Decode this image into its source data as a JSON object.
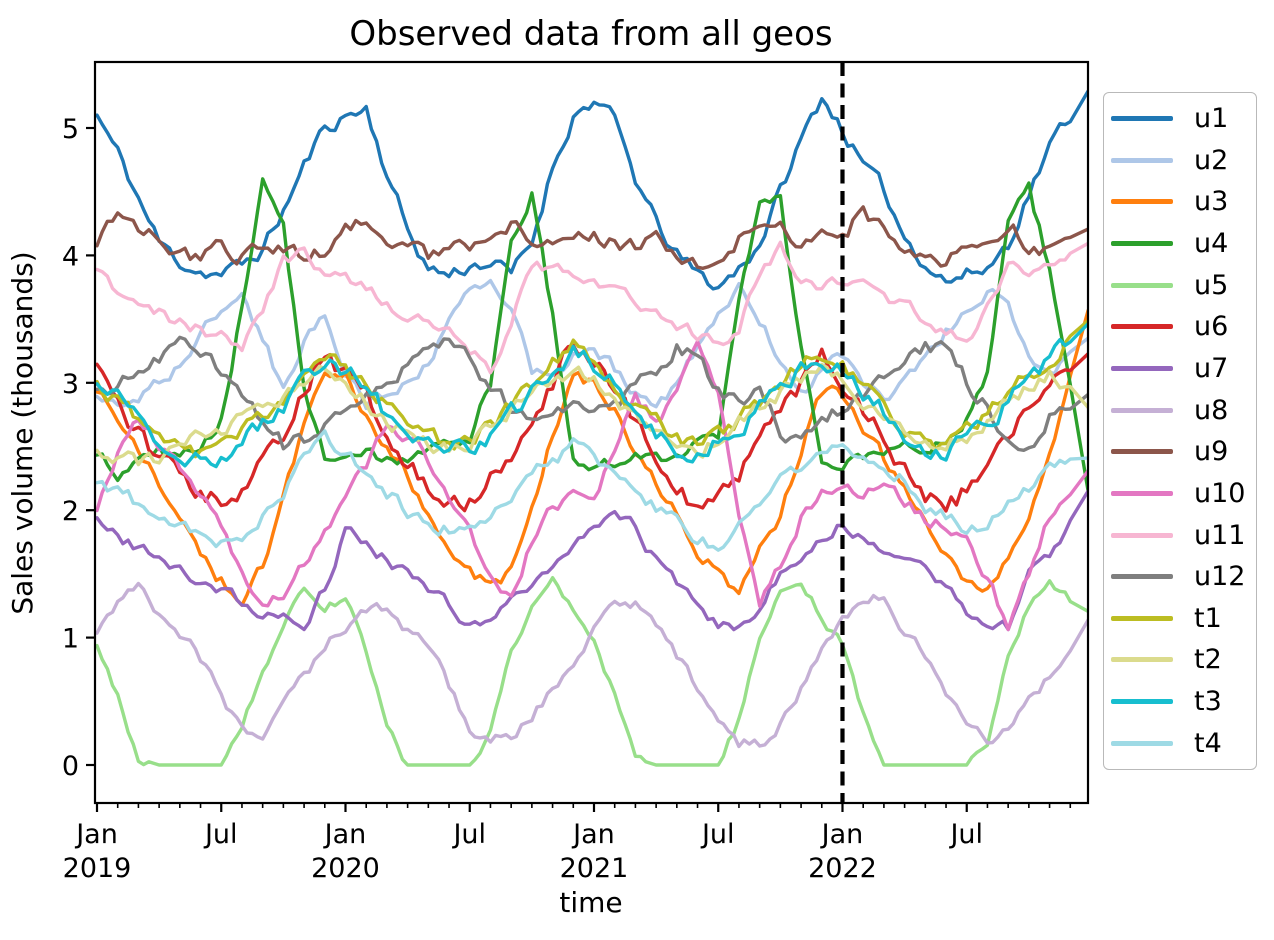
{
  "figure": {
    "title": "Observed data from all geos",
    "xlabel": "time",
    "ylabel": "Sales volume (thousands)"
  },
  "legend": {
    "position": "outside-right",
    "entries": [
      {
        "id": "u1",
        "label": "u1",
        "color": "#1f77b4"
      },
      {
        "id": "u2",
        "label": "u2",
        "color": "#aec7e8"
      },
      {
        "id": "u3",
        "label": "u3",
        "color": "#ff7f0e"
      },
      {
        "id": "u4",
        "label": "u4",
        "color": "#2ca02c"
      },
      {
        "id": "u5",
        "label": "u5",
        "color": "#98df8a"
      },
      {
        "id": "u6",
        "label": "u6",
        "color": "#d62728"
      },
      {
        "id": "u7",
        "label": "u7",
        "color": "#9467bd"
      },
      {
        "id": "u8",
        "label": "u8",
        "color": "#c5b0d5"
      },
      {
        "id": "u9",
        "label": "u9",
        "color": "#8c564b"
      },
      {
        "id": "u10",
        "label": "u10",
        "color": "#e377c2"
      },
      {
        "id": "u11",
        "label": "u11",
        "color": "#f7b6d2"
      },
      {
        "id": "u12",
        "label": "u12",
        "color": "#7f7f7f"
      },
      {
        "id": "t1",
        "label": "t1",
        "color": "#bcbd22"
      },
      {
        "id": "t2",
        "label": "t2",
        "color": "#dbdb8d"
      },
      {
        "id": "t3",
        "label": "t3",
        "color": "#17becf"
      },
      {
        "id": "t4",
        "label": "t4",
        "color": "#9edae5"
      }
    ]
  },
  "chart_data": {
    "type": "line",
    "title": "Observed data from all geos",
    "xlabel": "time",
    "ylabel": "Sales volume (thousands)",
    "x_unit": "months since Jan 2019",
    "x_range_months": 48,
    "xlim": [
      0,
      47.86
    ],
    "ylim": [
      -0.3,
      5.52
    ],
    "grid": false,
    "legend_position": "outside-right",
    "xticks": [
      {
        "month": 0,
        "label": "Jan",
        "year": "2019"
      },
      {
        "month": 6,
        "label": "Jul"
      },
      {
        "month": 12,
        "label": "Jan",
        "year": "2020"
      },
      {
        "month": 18,
        "label": "Jul"
      },
      {
        "month": 24,
        "label": "Jan",
        "year": "2021"
      },
      {
        "month": 30,
        "label": "Jul"
      },
      {
        "month": 36,
        "label": "Jan",
        "year": "2022"
      },
      {
        "month": 42,
        "label": "Jul"
      }
    ],
    "minor_xticks_every_month": true,
    "yticks": [
      0,
      1,
      2,
      3,
      4,
      5
    ],
    "vline": {
      "month": 36,
      "date": "Jan 2022",
      "color": "#000000",
      "style": "dashed"
    },
    "series": [
      {
        "name": "u1",
        "color": "#1f77b4",
        "jitter": 0.055,
        "values": [
          5.1,
          4.8,
          4.45,
          4.1,
          3.95,
          3.88,
          3.85,
          3.92,
          4.05,
          4.35,
          4.7,
          5.0,
          5.1,
          5.15,
          4.65,
          4.2,
          3.9,
          3.85,
          3.92,
          3.95,
          3.85,
          4.1,
          4.7,
          5.1,
          5.22,
          5.05,
          4.6,
          4.25,
          4.0,
          3.85,
          3.75,
          3.9,
          4.1,
          4.5,
          4.9,
          5.25,
          5.0,
          4.7,
          4.5,
          4.15,
          3.95,
          3.8,
          3.85,
          3.9,
          4.1,
          4.5,
          4.85,
          5.1
        ]
      },
      {
        "name": "u2",
        "color": "#aec7e8",
        "jitter": 0.05,
        "values": [
          2.9,
          2.8,
          2.9,
          3.0,
          3.15,
          3.35,
          3.6,
          3.67,
          3.35,
          2.95,
          3.3,
          3.55,
          3.1,
          2.85,
          2.9,
          3.0,
          3.2,
          3.45,
          3.7,
          3.8,
          3.55,
          3.1,
          3.0,
          3.25,
          3.3,
          3.1,
          2.95,
          2.85,
          3.0,
          3.25,
          3.55,
          3.72,
          3.5,
          3.2,
          2.9,
          3.1,
          3.2,
          3.0,
          2.9,
          3.0,
          3.15,
          3.4,
          3.58,
          3.7,
          3.6,
          3.25,
          3.05,
          3.2
        ]
      },
      {
        "name": "u3",
        "color": "#ff7f0e",
        "jitter": 0.05,
        "values": [
          2.95,
          2.7,
          2.45,
          2.2,
          1.9,
          1.65,
          1.45,
          1.32,
          1.55,
          2.1,
          2.65,
          3.0,
          3.05,
          2.75,
          2.5,
          2.25,
          2.0,
          1.75,
          1.55,
          1.4,
          1.5,
          2.0,
          2.6,
          3.0,
          3.0,
          2.8,
          2.5,
          2.2,
          1.95,
          1.7,
          1.5,
          1.35,
          1.7,
          1.95,
          2.5,
          2.9,
          2.9,
          2.65,
          2.4,
          2.15,
          1.9,
          1.7,
          1.45,
          1.35,
          1.6,
          1.85,
          2.45,
          3.05
        ]
      },
      {
        "name": "u4",
        "color": "#2ca02c",
        "jitter": 0.05,
        "values": [
          2.4,
          2.3,
          2.35,
          2.45,
          2.4,
          2.5,
          2.7,
          3.6,
          4.6,
          4.2,
          2.9,
          2.4,
          2.35,
          2.45,
          2.4,
          2.35,
          2.45,
          2.55,
          2.6,
          3.0,
          4.05,
          4.45,
          3.5,
          2.4,
          2.35,
          2.4,
          2.5,
          2.45,
          2.4,
          2.55,
          2.6,
          3.7,
          4.38,
          4.42,
          3.3,
          2.35,
          2.4,
          2.35,
          2.45,
          2.5,
          2.45,
          2.55,
          2.7,
          3.1,
          4.3,
          4.5,
          3.9,
          2.95
        ]
      },
      {
        "name": "u5",
        "color": "#98df8a",
        "jitter": 0.035,
        "values": [
          0.95,
          0.55,
          0.05,
          0.0,
          0.0,
          0.0,
          0.0,
          0.3,
          0.75,
          1.1,
          1.4,
          1.25,
          1.3,
          0.9,
          0.3,
          0.0,
          0.0,
          0.0,
          0.0,
          0.25,
          0.9,
          1.25,
          1.45,
          1.2,
          1.0,
          0.55,
          0.05,
          0.0,
          0.0,
          0.0,
          0.0,
          0.35,
          1.0,
          1.35,
          1.45,
          1.15,
          0.95,
          0.4,
          0.0,
          0.0,
          0.0,
          0.0,
          0.0,
          0.2,
          0.85,
          1.25,
          1.4,
          1.3
        ]
      },
      {
        "name": "u6",
        "color": "#d62728",
        "jitter": 0.075,
        "values": [
          3.2,
          2.85,
          2.6,
          2.4,
          2.25,
          2.1,
          2.05,
          2.2,
          2.35,
          2.6,
          2.95,
          3.25,
          3.05,
          2.9,
          2.65,
          2.35,
          2.2,
          2.05,
          2.1,
          2.25,
          2.45,
          2.7,
          3.0,
          3.3,
          3.1,
          2.95,
          2.7,
          2.45,
          2.2,
          2.0,
          2.1,
          2.3,
          2.5,
          2.75,
          3.0,
          3.2,
          2.95,
          2.8,
          2.55,
          2.3,
          2.1,
          2.0,
          2.15,
          2.35,
          2.6,
          2.75,
          2.95,
          3.1
        ]
      },
      {
        "name": "u7",
        "color": "#9467bd",
        "jitter": 0.045,
        "values": [
          1.9,
          1.8,
          1.7,
          1.6,
          1.5,
          1.45,
          1.35,
          1.28,
          1.22,
          1.15,
          1.08,
          1.4,
          1.85,
          1.75,
          1.6,
          1.5,
          1.4,
          1.25,
          1.12,
          1.1,
          1.25,
          1.4,
          1.55,
          1.7,
          1.85,
          1.95,
          1.85,
          1.6,
          1.45,
          1.25,
          1.1,
          1.05,
          1.2,
          1.5,
          1.65,
          1.8,
          1.92,
          1.8,
          1.72,
          1.65,
          1.5,
          1.4,
          1.2,
          1.12,
          1.08,
          1.55,
          1.62,
          1.9
        ]
      },
      {
        "name": "u8",
        "color": "#c5b0d5",
        "jitter": 0.045,
        "values": [
          1.0,
          1.25,
          1.4,
          1.2,
          1.05,
          0.85,
          0.55,
          0.25,
          0.15,
          0.45,
          0.7,
          0.9,
          1.1,
          1.2,
          1.22,
          1.05,
          0.95,
          0.6,
          0.3,
          0.22,
          0.2,
          0.4,
          0.6,
          0.8,
          1.05,
          1.3,
          1.25,
          1.1,
          0.85,
          0.6,
          0.35,
          0.18,
          0.15,
          0.35,
          0.6,
          0.9,
          1.15,
          1.25,
          1.35,
          1.05,
          0.85,
          0.55,
          0.3,
          0.2,
          0.25,
          0.5,
          0.7,
          0.95
        ]
      },
      {
        "name": "u9",
        "color": "#8c564b",
        "jitter": 0.06,
        "values": [
          4.1,
          4.35,
          4.25,
          4.1,
          4.0,
          3.95,
          4.05,
          4.0,
          4.1,
          4.05,
          3.98,
          4.05,
          4.2,
          4.28,
          4.15,
          4.05,
          3.98,
          4.05,
          4.1,
          4.18,
          4.25,
          4.15,
          4.1,
          4.2,
          4.15,
          4.1,
          4.05,
          4.12,
          4.0,
          3.95,
          4.05,
          4.15,
          4.3,
          4.2,
          4.05,
          4.2,
          4.15,
          4.35,
          4.2,
          4.05,
          4.0,
          3.95,
          4.05,
          4.15,
          4.25,
          4.1,
          4.0,
          4.1
        ]
      },
      {
        "name": "u10",
        "color": "#e377c2",
        "jitter": 0.05,
        "values": [
          2.0,
          2.4,
          2.7,
          2.5,
          2.3,
          2.1,
          1.9,
          1.5,
          1.2,
          1.35,
          1.6,
          1.85,
          2.1,
          2.35,
          2.7,
          2.55,
          2.4,
          2.1,
          1.8,
          1.45,
          1.3,
          1.75,
          2.05,
          2.1,
          2.15,
          2.5,
          2.88,
          2.7,
          2.95,
          3.25,
          2.9,
          2.0,
          1.28,
          1.55,
          1.95,
          2.15,
          2.2,
          2.1,
          2.25,
          2.1,
          1.95,
          1.9,
          1.8,
          1.45,
          1.1,
          1.5,
          1.95,
          2.15
        ]
      },
      {
        "name": "u11",
        "color": "#f7b6d2",
        "jitter": 0.05,
        "values": [
          3.85,
          3.7,
          3.6,
          3.55,
          3.48,
          3.42,
          3.35,
          3.3,
          3.55,
          3.95,
          4.05,
          3.85,
          3.9,
          3.72,
          3.6,
          3.52,
          3.45,
          3.38,
          3.25,
          3.1,
          3.5,
          3.95,
          3.9,
          3.85,
          3.8,
          3.7,
          3.62,
          3.55,
          3.45,
          3.38,
          3.28,
          3.45,
          3.85,
          4.04,
          3.85,
          3.78,
          3.8,
          3.73,
          3.65,
          3.58,
          3.5,
          3.4,
          3.35,
          3.6,
          3.9,
          3.85,
          3.9,
          4.0
        ]
      },
      {
        "name": "u12",
        "color": "#7f7f7f",
        "jitter": 0.06,
        "values": [
          2.9,
          3.0,
          3.1,
          3.2,
          3.3,
          3.25,
          3.1,
          2.9,
          2.7,
          2.5,
          2.55,
          2.7,
          2.75,
          2.85,
          3.0,
          3.15,
          3.3,
          3.35,
          3.2,
          3.0,
          2.8,
          2.65,
          2.75,
          2.85,
          2.7,
          2.8,
          2.95,
          3.1,
          3.28,
          3.2,
          2.95,
          2.88,
          2.9,
          2.6,
          2.55,
          2.68,
          2.8,
          2.9,
          3.05,
          3.2,
          3.3,
          3.25,
          3.0,
          2.8,
          2.55,
          2.45,
          2.75,
          2.85
        ]
      },
      {
        "name": "t1",
        "color": "#bcbd22",
        "jitter": 0.06,
        "values": [
          3.0,
          2.85,
          2.7,
          2.6,
          2.5,
          2.45,
          2.5,
          2.6,
          2.75,
          2.9,
          3.1,
          3.25,
          3.15,
          2.95,
          2.8,
          2.65,
          2.55,
          2.5,
          2.55,
          2.65,
          2.8,
          2.95,
          3.15,
          3.3,
          3.2,
          3.0,
          2.8,
          2.7,
          2.55,
          2.5,
          2.6,
          2.7,
          2.85,
          3.0,
          3.15,
          3.25,
          3.15,
          2.95,
          2.8,
          2.65,
          2.55,
          2.5,
          2.6,
          2.75,
          2.9,
          3.05,
          3.2,
          3.35
        ]
      },
      {
        "name": "t2",
        "color": "#dbdb8d",
        "jitter": 0.055,
        "values": [
          2.5,
          2.42,
          2.38,
          2.42,
          2.5,
          2.58,
          2.65,
          2.72,
          2.8,
          2.88,
          2.98,
          3.08,
          3.0,
          2.85,
          2.7,
          2.6,
          2.52,
          2.48,
          2.55,
          2.65,
          2.78,
          2.9,
          3.0,
          3.1,
          3.05,
          2.9,
          2.72,
          2.6,
          2.5,
          2.45,
          2.55,
          2.68,
          2.8,
          2.92,
          3.02,
          3.12,
          3.0,
          2.88,
          2.72,
          2.62,
          2.52,
          2.5,
          2.58,
          2.7,
          2.85,
          2.95,
          3.05,
          2.9
        ]
      },
      {
        "name": "t3",
        "color": "#17becf",
        "jitter": 0.065,
        "values": [
          3.0,
          2.85,
          2.7,
          2.55,
          2.45,
          2.4,
          2.45,
          2.55,
          2.65,
          2.8,
          3.0,
          3.2,
          3.1,
          2.95,
          2.75,
          2.6,
          2.5,
          2.45,
          2.5,
          2.6,
          2.75,
          2.9,
          3.1,
          3.25,
          3.15,
          3.0,
          2.8,
          2.62,
          2.5,
          2.45,
          2.55,
          2.65,
          2.8,
          2.95,
          3.1,
          3.2,
          3.1,
          2.95,
          2.78,
          2.6,
          2.5,
          2.48,
          2.55,
          2.7,
          2.85,
          3.0,
          3.2,
          3.35
        ]
      },
      {
        "name": "t4",
        "color": "#9edae5",
        "jitter": 0.05,
        "values": [
          2.25,
          2.15,
          2.05,
          1.95,
          1.85,
          1.78,
          1.72,
          1.8,
          1.95,
          2.15,
          2.4,
          2.55,
          2.45,
          2.3,
          2.15,
          2.0,
          1.9,
          1.85,
          1.88,
          1.95,
          2.1,
          2.25,
          2.4,
          2.5,
          2.4,
          2.26,
          2.15,
          2.02,
          1.9,
          1.78,
          1.72,
          1.85,
          2.03,
          2.24,
          2.35,
          2.48,
          2.57,
          2.4,
          2.28,
          2.24,
          2.05,
          1.95,
          1.85,
          1.9,
          2.05,
          2.16,
          2.39,
          2.4
        ]
      }
    ]
  }
}
